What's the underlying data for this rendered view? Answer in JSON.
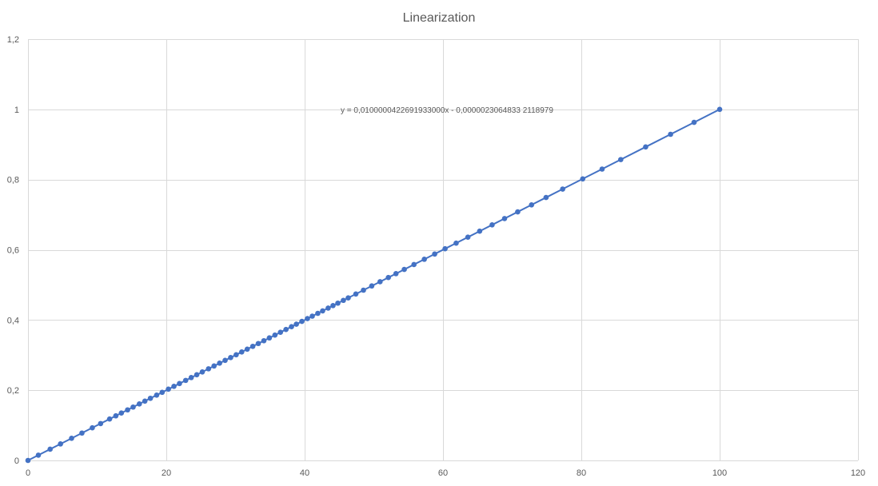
{
  "chart_data": {
    "type": "scatter",
    "title": "Linearization",
    "xlabel": "",
    "ylabel": "",
    "xlim": [
      0,
      120
    ],
    "ylim": [
      0,
      1.2
    ],
    "x_ticks": [
      "0",
      "20",
      "40",
      "60",
      "80",
      "100",
      "120"
    ],
    "y_ticks": [
      "0",
      "0,2",
      "0,4",
      "0,6",
      "0,8",
      "1",
      "1,2"
    ],
    "x_tick_values": [
      0,
      20,
      40,
      60,
      80,
      100,
      120
    ],
    "y_tick_values": [
      0,
      0.2,
      0.4,
      0.6,
      0.8,
      1.0,
      1.2
    ],
    "grid": true,
    "legend": "none",
    "series_color": "#4472c4",
    "trendline_label": "y = 0,0100000422691933000x - 0,0000023064833 2118979",
    "series": [
      {
        "x": [
          0,
          1.5,
          3.2,
          4.7,
          6.3,
          7.8,
          9.3,
          10.5,
          11.8,
          12.7,
          13.5,
          14.4,
          15.2,
          16.1,
          16.9,
          17.7,
          18.6,
          19.4,
          20.3,
          21.1,
          21.9,
          22.8,
          23.6,
          24.4,
          25.2,
          26.1,
          26.9,
          27.7,
          28.5,
          29.3,
          30.1,
          30.9,
          31.7,
          32.5,
          33.3,
          34.1,
          34.9,
          35.7,
          36.5,
          37.3,
          38.1,
          38.8,
          39.6,
          40.4,
          41.1,
          41.9,
          42.6,
          43.4,
          44.1,
          44.8,
          45.6,
          46.3,
          47.4,
          48.5,
          49.7,
          50.9,
          52.1,
          53.2,
          54.4,
          55.8,
          57.3,
          58.8,
          60.3,
          61.9,
          63.6,
          65.3,
          67.1,
          68.9,
          70.8,
          72.8,
          74.9,
          77.3,
          80.2,
          83.0,
          85.7,
          89.3,
          92.9,
          96.3,
          100
        ]
      }
    ]
  }
}
